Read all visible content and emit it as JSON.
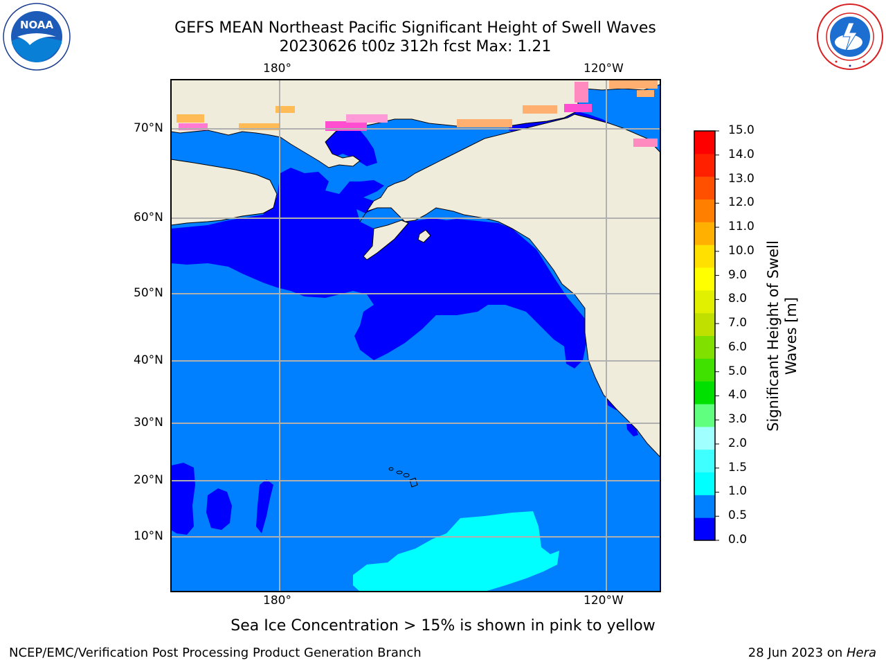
{
  "header": {
    "title_line1": "GEFS MEAN Northeast Pacific Significant Height of Swell Waves",
    "title_line2": "20230626 t00z 312h fcst   Max: 1.21"
  },
  "logos": {
    "noaa_text": "NOAA",
    "noaa_ring_text": "NATIONAL OCEANIC AND ATMOSPHERIC ADMINISTRATION · U.S. DEPARTMENT OF COMMERCE",
    "nws_ring_text": "NATIONAL WEATHER SERVICE"
  },
  "map": {
    "top_lon_labels": [
      "180°",
      "120°W"
    ],
    "bottom_lon_labels": [
      "180°",
      "120°W"
    ],
    "lat_labels": [
      "70°N",
      "60°N",
      "50°N",
      "40°N",
      "30°N",
      "20°N",
      "10°N"
    ],
    "colors": {
      "land": "#efecdc",
      "ocean_low": "#0000ff",
      "ocean_mid": "#0080ff",
      "ocean_high": "#00ffff",
      "grid": "#b0b0b0"
    }
  },
  "colorbar": {
    "label_line1": "Significant Height of Swell",
    "label_line2": "Waves [m]",
    "ticks": [
      "0.0",
      "0.5",
      "1.0",
      "1.5",
      "2.0",
      "3.0",
      "4.0",
      "5.0",
      "6.0",
      "7.0",
      "8.0",
      "9.0",
      "10.0",
      "11.0",
      "12.0",
      "13.0",
      "14.0",
      "15.0"
    ],
    "colors": [
      "#0000ff",
      "#0080ff",
      "#00ffff",
      "#40ffff",
      "#a0ffff",
      "#60ff80",
      "#00e000",
      "#40e000",
      "#80e000",
      "#c0e000",
      "#e0f000",
      "#ffff00",
      "#ffe000",
      "#ffb000",
      "#ff8000",
      "#ff5000",
      "#ff2000",
      "#ff0000"
    ]
  },
  "footer": {
    "sea_ice_note": "Sea Ice Concentration > 15% is shown in pink to yellow",
    "branch": "NCEP/EMC/Verification Post Processing Product Generation Branch",
    "date": "28 Jun 2023 on ",
    "machine": "Hera"
  }
}
